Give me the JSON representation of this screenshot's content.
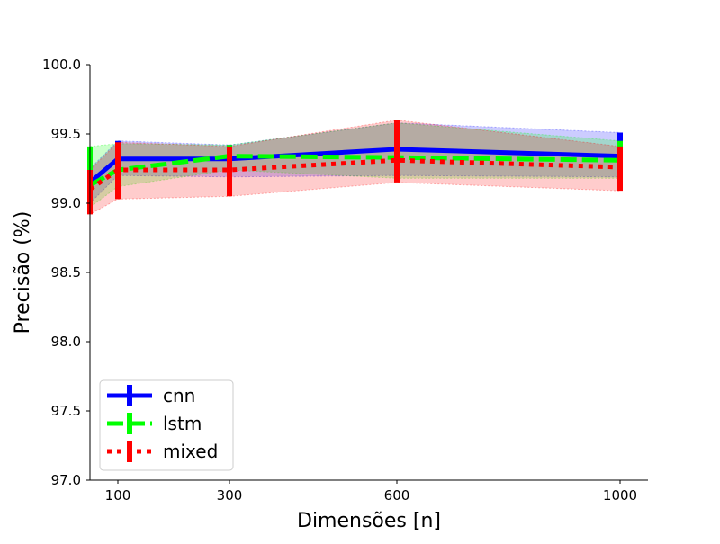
{
  "chart_data": {
    "type": "line",
    "xlabel": "Dimensões [n]",
    "ylabel": "Precisão (%)",
    "xlim": [
      50,
      1050
    ],
    "ylim": [
      97.0,
      100.0
    ],
    "x_ticks": [
      100,
      300,
      600,
      1000
    ],
    "x_tick_labels": [
      "100",
      "300",
      "600",
      "1000"
    ],
    "y_ticks": [
      97.0,
      97.5,
      98.0,
      98.5,
      99.0,
      99.5,
      100.0
    ],
    "y_tick_labels": [
      "97.0",
      "97.5",
      "98.0",
      "98.5",
      "99.0",
      "99.5",
      "100.0"
    ],
    "grid": false,
    "legend_position": "lower-left",
    "series": [
      {
        "name": "cnn",
        "color": "#0000ff",
        "linestyle": "solid",
        "x": [
          50,
          100,
          300,
          600,
          1000
        ],
        "y": [
          99.15,
          99.32,
          99.32,
          99.39,
          99.34
        ],
        "lower": [
          99.0,
          99.2,
          99.19,
          99.2,
          99.19
        ],
        "upper": [
          99.25,
          99.45,
          99.42,
          99.58,
          99.51
        ]
      },
      {
        "name": "lstm",
        "color": "#00ff00",
        "linestyle": "dashed",
        "x": [
          50,
          100,
          300,
          600,
          1000
        ],
        "y": [
          99.13,
          99.24,
          99.34,
          99.33,
          99.31
        ],
        "lower": [
          98.97,
          99.12,
          99.24,
          99.18,
          99.18
        ],
        "upper": [
          99.41,
          99.43,
          99.42,
          99.58,
          99.45
        ]
      },
      {
        "name": "mixed",
        "color": "#ff0000",
        "linestyle": "dotted",
        "x": [
          50,
          100,
          300,
          600,
          1000
        ],
        "y": [
          99.1,
          99.24,
          99.24,
          99.31,
          99.26
        ],
        "lower": [
          98.92,
          99.03,
          99.05,
          99.15,
          99.09
        ],
        "upper": [
          99.24,
          99.44,
          99.41,
          99.6,
          99.41
        ]
      }
    ]
  }
}
